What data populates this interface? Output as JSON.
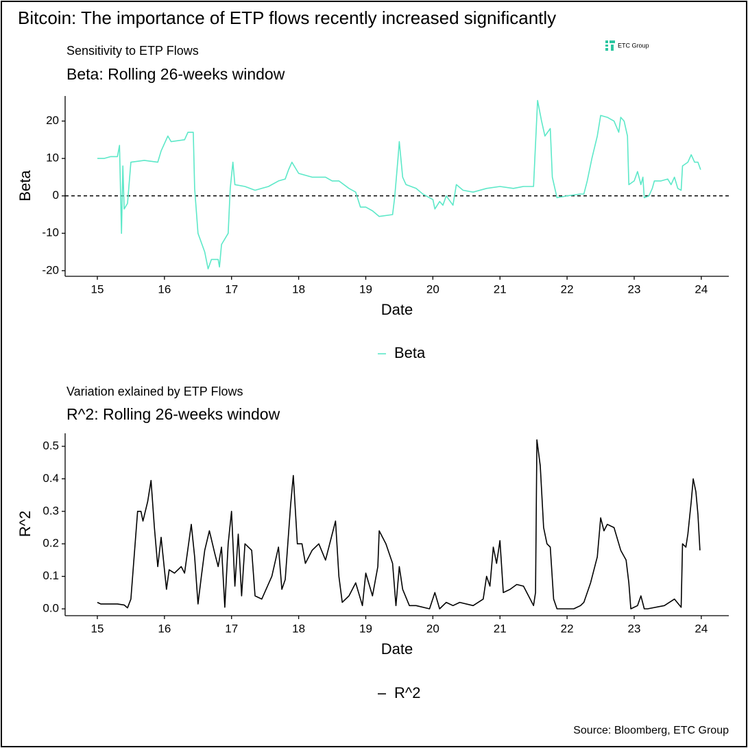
{
  "title": "Bitcoin: The importance of ETP flows recently increased significantly",
  "logo": "ETC Group",
  "source": "Source: Bloomberg, ETC Group",
  "chart_data": [
    {
      "type": "line",
      "subtitle": "Sensitivity to ETP Flows",
      "title": "Beta: Rolling 26-weeks window",
      "x_label": "Date",
      "y_label": "Beta",
      "x": [
        15.0,
        15.1,
        15.2,
        15.3,
        15.33,
        15.36,
        15.38,
        15.4,
        15.45,
        15.5,
        15.7,
        15.9,
        15.95,
        16.05,
        16.1,
        16.3,
        16.35,
        16.43,
        16.45,
        16.5,
        16.6,
        16.65,
        16.7,
        16.8,
        16.82,
        16.85,
        16.95,
        16.98,
        17.02,
        17.05,
        17.2,
        17.35,
        17.55,
        17.7,
        17.8,
        17.85,
        17.9,
        18.0,
        18.2,
        18.4,
        18.5,
        18.6,
        18.75,
        18.85,
        18.92,
        19.0,
        19.1,
        19.2,
        19.4,
        19.43,
        19.48,
        19.5,
        19.55,
        19.6,
        19.75,
        19.85,
        19.95,
        20.0,
        20.03,
        20.1,
        20.15,
        20.2,
        20.3,
        20.35,
        20.45,
        20.6,
        20.8,
        21.0,
        21.2,
        21.35,
        21.5,
        21.52,
        21.56,
        21.62,
        21.67,
        21.75,
        21.78,
        21.85,
        22.0,
        22.2,
        22.25,
        22.3,
        22.37,
        22.45,
        22.5,
        22.6,
        22.7,
        22.77,
        22.8,
        22.85,
        22.9,
        22.92,
        23.0,
        23.05,
        23.1,
        23.13,
        23.15,
        23.22,
        23.27,
        23.3,
        23.4,
        23.5,
        23.55,
        23.6,
        23.65,
        23.7,
        23.72,
        23.8,
        23.85,
        23.9,
        23.95,
        23.99
      ],
      "series": [
        {
          "name": "Beta",
          "color": "#5ce8c8",
          "values": [
            10,
            10,
            10.5,
            10.5,
            13.5,
            -10,
            8,
            -3.5,
            -2,
            9,
            9.5,
            9,
            12,
            16,
            14.5,
            15,
            17,
            17,
            2,
            -10,
            -15,
            -19.5,
            -17,
            -17,
            -19,
            -13,
            -10,
            2,
            9,
            3,
            2.5,
            1.5,
            2.5,
            4,
            4.5,
            7,
            9,
            6,
            5,
            5,
            4,
            4,
            2,
            1,
            -3,
            -3,
            -4,
            -5.5,
            -5,
            -0.5,
            10,
            14.5,
            5,
            3,
            2,
            0.5,
            -0.5,
            -1,
            -3.5,
            -1.5,
            -2.5,
            0,
            -2.5,
            3,
            1.5,
            1,
            2,
            2.5,
            2,
            2.5,
            2.5,
            10,
            25.5,
            20,
            16,
            18,
            5,
            -0.5,
            0,
            0.5,
            0.5,
            4,
            10,
            16,
            21.5,
            21,
            20,
            17,
            21,
            20,
            16,
            3,
            4,
            6.5,
            3,
            5,
            -0.5,
            0,
            2,
            4,
            4,
            4.5,
            3,
            5,
            2,
            1.5,
            8,
            9,
            11,
            9,
            9,
            7
          ]
        }
      ],
      "xlim": [
        14.52,
        24.41
      ],
      "xticks": [
        15,
        16,
        17,
        18,
        19,
        20,
        21,
        22,
        23,
        24
      ],
      "ylim": [
        -21.5,
        26.7
      ],
      "yticks": [
        -20,
        -10,
        0,
        10,
        20
      ],
      "reference_line": 0,
      "grid": false,
      "legend": "bottom"
    },
    {
      "type": "line",
      "subtitle": "Variation exlained by ETP Flows",
      "title": "R^2: Rolling 26-weeks window",
      "x_label": "Date",
      "y_label": "R^2",
      "x": [
        15.0,
        15.05,
        15.3,
        15.4,
        15.45,
        15.5,
        15.6,
        15.65,
        15.68,
        15.75,
        15.8,
        15.85,
        15.9,
        15.95,
        16.03,
        16.07,
        16.15,
        16.25,
        16.3,
        16.4,
        16.45,
        16.5,
        16.55,
        16.6,
        16.67,
        16.75,
        16.8,
        16.85,
        16.9,
        16.95,
        17.0,
        17.05,
        17.1,
        17.15,
        17.2,
        17.3,
        17.35,
        17.45,
        17.6,
        17.7,
        17.75,
        17.8,
        17.88,
        17.92,
        17.98,
        18.05,
        18.1,
        18.2,
        18.3,
        18.4,
        18.5,
        18.55,
        18.6,
        18.65,
        18.75,
        18.85,
        18.95,
        19.0,
        19.1,
        19.18,
        19.2,
        19.3,
        19.4,
        19.45,
        19.5,
        19.55,
        19.65,
        19.75,
        19.95,
        20.03,
        20.1,
        20.2,
        20.3,
        20.4,
        20.6,
        20.75,
        20.8,
        20.85,
        20.9,
        20.95,
        21.0,
        21.05,
        21.15,
        21.25,
        21.35,
        21.45,
        21.5,
        21.53,
        21.55,
        21.6,
        21.65,
        21.7,
        21.75,
        21.8,
        21.85,
        22.1,
        22.2,
        22.25,
        22.35,
        22.45,
        22.5,
        22.55,
        22.6,
        22.7,
        22.8,
        22.88,
        22.92,
        22.95,
        23.05,
        23.1,
        23.15,
        23.2,
        23.45,
        23.6,
        23.7,
        23.72,
        23.77,
        23.8,
        23.85,
        23.88,
        23.92,
        23.95,
        23.98
      ],
      "series": [
        {
          "name": "R^2",
          "color": "#000000",
          "values": [
            0.02,
            0.015,
            0.015,
            0.012,
            0.003,
            0.03,
            0.3,
            0.3,
            0.27,
            0.33,
            0.395,
            0.25,
            0.13,
            0.22,
            0.06,
            0.12,
            0.11,
            0.13,
            0.11,
            0.26,
            0.16,
            0.015,
            0.1,
            0.18,
            0.24,
            0.17,
            0.13,
            0.19,
            0.005,
            0.2,
            0.3,
            0.07,
            0.23,
            0.04,
            0.2,
            0.18,
            0.04,
            0.03,
            0.1,
            0.19,
            0.06,
            0.09,
            0.32,
            0.41,
            0.2,
            0.2,
            0.14,
            0.18,
            0.2,
            0.15,
            0.23,
            0.27,
            0.1,
            0.02,
            0.04,
            0.08,
            0.01,
            0.11,
            0.04,
            0.13,
            0.24,
            0.2,
            0.14,
            0.01,
            0.13,
            0.06,
            0.01,
            0.01,
            0.0,
            0.05,
            0.0,
            0.02,
            0.01,
            0.02,
            0.01,
            0.03,
            0.1,
            0.07,
            0.19,
            0.14,
            0.21,
            0.05,
            0.06,
            0.075,
            0.07,
            0.03,
            0.01,
            0.05,
            0.52,
            0.44,
            0.25,
            0.2,
            0.19,
            0.03,
            0.0,
            0.0,
            0.01,
            0.02,
            0.08,
            0.16,
            0.28,
            0.24,
            0.26,
            0.25,
            0.18,
            0.15,
            0.08,
            0.0,
            0.01,
            0.04,
            0.0,
            0.0,
            0.01,
            0.03,
            0.005,
            0.2,
            0.19,
            0.23,
            0.33,
            0.4,
            0.36,
            0.29,
            0.18
          ]
        }
      ],
      "xlim": [
        14.52,
        24.41
      ],
      "xticks": [
        15,
        16,
        17,
        18,
        19,
        20,
        21,
        22,
        23,
        24
      ],
      "ylim": [
        -0.021,
        0.54
      ],
      "yticks": [
        {
          "value": 0,
          "label": "0.0"
        },
        0.1,
        0.2,
        0.3,
        0.4,
        0.5
      ],
      "grid": false,
      "legend": "bottom"
    }
  ]
}
